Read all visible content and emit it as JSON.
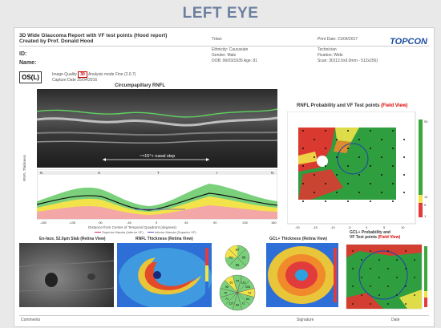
{
  "banner": {
    "title": "LEFT EYE"
  },
  "report": {
    "title": "3D Wide Glaucoma Report with VF test points (Hood report)",
    "author": "Created by Prof. Donald Hood",
    "id_label": "ID:",
    "name_label": "Name:",
    "eye": "OS(L)",
    "image_quality_label": "Image Quality",
    "image_quality_value": "30",
    "analysis_mode": "Analysis mode Fine (2.0.7)",
    "capture_date": "Capture Date 25/04/2016",
    "tritan": "Tritan",
    "ethnicity": "Ethnicity: Caucasian",
    "gender": "Gender: Male",
    "dob_age": "DOB: 06/03/1935   Age: 81",
    "print_date": "Print Date: 21/04/2017",
    "technician": "Technician",
    "fixation": "Fixation: Wide",
    "scan": "Scan: 3D(12.0x9.0mm - 512x256)",
    "logo": "TOPCON"
  },
  "bscan": {
    "title": "Circumpapillary RNFL",
    "annotation": "~≈15°+ nasal step",
    "sector_labels": [
      "N",
      "S",
      "T",
      "I",
      "N"
    ],
    "x_ticks": [
      "-180",
      "-135",
      "-90",
      "-45",
      "0",
      "45",
      "90",
      "135",
      "180"
    ],
    "y_label": "RNFL Thickness",
    "x_caption": "Distance from Center of Temporal Quadrant (degrees)",
    "legend_1": "Superior Macula (Inferior VF)",
    "legend_2": "Inferior Macula (Superior VF)"
  },
  "rnfl_prob": {
    "title": "RNFL Probability and VF Test points",
    "view": "(Field View)",
    "x_ticks": [
      "-20",
      "-15",
      "-10",
      "-5",
      "0",
      "5",
      "10"
    ],
    "scale": [
      "50",
      "10",
      "5",
      "1"
    ]
  },
  "bottom": {
    "enface_title": "En-face, 52.0µm Slab (Retina View)",
    "thickness_title": "RNFL Thickness (Retina View)",
    "quad_values": [
      "97",
      "82",
      "88",
      "86",
      "56"
    ],
    "clock_values": [
      "79",
      "113",
      "104",
      "73",
      "64",
      "71",
      "84",
      "127",
      "71",
      "70",
      "90",
      "61"
    ],
    "gcl_title": "GCL+ Thickness (Retina View)",
    "gcl_prob_title": "GCL+ Probability and",
    "gcl_prob_title2": "VF Test points",
    "gcl_view": "(Field View)",
    "comments": "Comments",
    "signature": "Signature",
    "date": "Date"
  },
  "colors": {
    "banner": "#6b7f9e",
    "normal": "#3aa83a",
    "borderline": "#f2e34a",
    "abnormal": "#e23b3b",
    "accent": "#cc0000"
  }
}
